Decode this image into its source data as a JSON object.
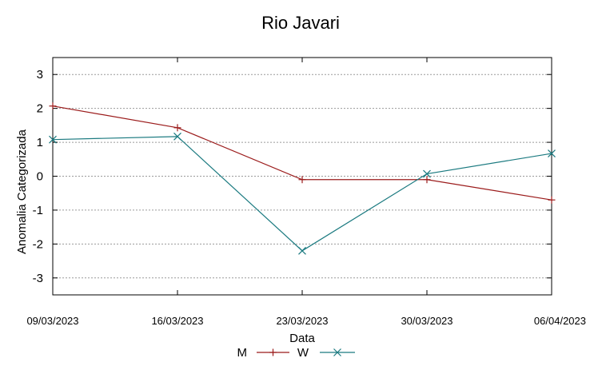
{
  "chart_data": {
    "type": "line",
    "title": "Rio Javari",
    "xlabel": "Data",
    "ylabel": "Anomalia Categorizada",
    "x": [
      "09/03/2023",
      "16/03/2023",
      "23/03/2023",
      "30/03/2023",
      "06/04/2023"
    ],
    "ylim": [
      -3.5,
      3.5
    ],
    "yticks": [
      3,
      2,
      1,
      0,
      -1,
      -2,
      -3
    ],
    "ytick_labels": [
      "3",
      "2",
      "1",
      "0",
      "-1",
      "-2",
      "-3"
    ],
    "grid": true,
    "legend_position": "bottom-center",
    "series": [
      {
        "name": "M",
        "values": [
          2.07,
          1.43,
          -0.1,
          -0.1,
          -0.7
        ],
        "color": "#9b1b1b",
        "marker": "plus"
      },
      {
        "name": "W",
        "values": [
          1.08,
          1.17,
          -2.2,
          0.07,
          0.67
        ],
        "color": "#1b7a80",
        "marker": "cross"
      }
    ]
  }
}
